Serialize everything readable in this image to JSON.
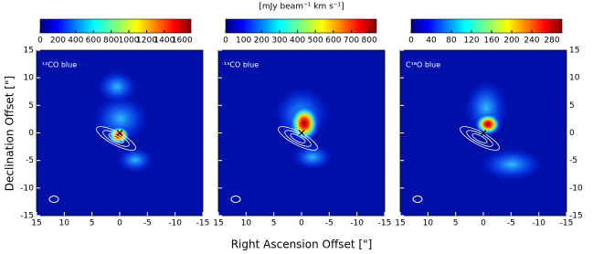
{
  "figure": {
    "colorbar_label": "[mJy beam⁻¹ km s⁻¹]",
    "xlabel": "Right Ascension Offset [\"]",
    "ylabel": "Declination Offset [\"]"
  },
  "chart_data": [
    {
      "type": "image",
      "label": "¹²CO blue",
      "clim": [
        0,
        1700
      ],
      "cticks": [
        0,
        200,
        400,
        600,
        800,
        1000,
        1200,
        1400,
        1600
      ],
      "xlim": [
        15,
        -15
      ],
      "ylim": [
        -15,
        15
      ],
      "xticks": [
        15,
        10,
        5,
        0,
        -5,
        -10,
        -15
      ],
      "yticks": [
        -15,
        -10,
        -5,
        0,
        5,
        10,
        15
      ]
    },
    {
      "type": "image",
      "label": "¹³CO blue",
      "clim": [
        0,
        840
      ],
      "cticks": [
        0,
        100,
        200,
        300,
        400,
        500,
        600,
        700,
        800
      ],
      "xlim": [
        15,
        -15
      ],
      "ylim": [
        -15,
        15
      ],
      "xticks": [
        15,
        10,
        5,
        0,
        -5,
        -10,
        -15
      ],
      "yticks": [
        -15,
        -10,
        -5,
        0,
        5,
        10,
        15
      ]
    },
    {
      "type": "image",
      "label": "C¹⁸O blue",
      "clim": [
        0,
        300
      ],
      "cticks": [
        0,
        40,
        80,
        120,
        160,
        200,
        240,
        280
      ],
      "xlim": [
        15,
        -15
      ],
      "ylim": [
        -15,
        15
      ],
      "xticks": [
        15,
        10,
        5,
        0,
        -5,
        -10,
        -15
      ],
      "yticks": [
        -15,
        -10,
        -5,
        0,
        5,
        10,
        15
      ]
    }
  ]
}
